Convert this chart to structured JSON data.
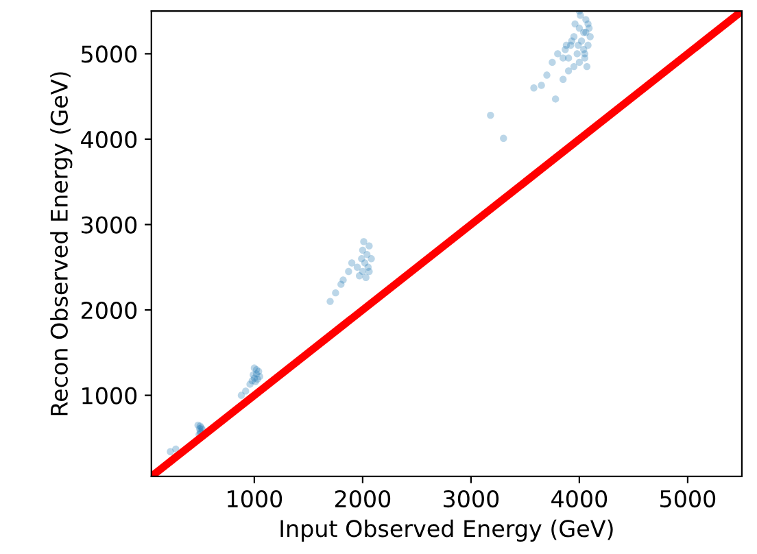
{
  "chart_data": {
    "type": "scatter",
    "xlabel": "Input Observed Energy (GeV)",
    "ylabel": "Recon Observed Energy (GeV)",
    "xlim": [
      50,
      5500
    ],
    "ylim": [
      50,
      5500
    ],
    "xticks": [
      1000,
      2000,
      3000,
      4000,
      5000
    ],
    "yticks": [
      1000,
      2000,
      3000,
      4000,
      5000
    ],
    "grid": false,
    "series": [
      {
        "marker": "circle",
        "color": "#1f77b4",
        "x": [
          225,
          275,
          490,
          500,
          510,
          520,
          505,
          495,
          480,
          500,
          880,
          920,
          960,
          980,
          1000,
          1020,
          1040,
          1050,
          1000,
          1010,
          1030,
          990,
          1020,
          1700,
          1750,
          1800,
          1820,
          1870,
          1900,
          1950,
          1970,
          2000,
          2020,
          2040,
          2060,
          2080,
          2000,
          2030,
          1990,
          2050,
          2010,
          2060,
          3180,
          3300,
          3580,
          3650,
          3780,
          3700,
          3750,
          3800,
          3850,
          3870,
          3900,
          3920,
          3950,
          3980,
          4000,
          4020,
          4040,
          4060,
          4080,
          4100,
          3900,
          3950,
          4000,
          4050,
          4080,
          3960,
          4010,
          4060,
          3930,
          3990,
          4040,
          4090,
          4000,
          4050,
          4070,
          3850,
          3880
        ],
        "values": [
          340,
          370,
          540,
          580,
          620,
          600,
          560,
          610,
          650,
          640,
          1000,
          1050,
          1130,
          1170,
          1200,
          1250,
          1280,
          1220,
          1320,
          1160,
          1190,
          1240,
          1300,
          2100,
          2200,
          2300,
          2350,
          2450,
          2550,
          2500,
          2400,
          2450,
          2550,
          2650,
          2750,
          2600,
          2700,
          2380,
          2600,
          2500,
          2800,
          2450,
          4280,
          4010,
          4600,
          4630,
          4470,
          4750,
          4900,
          5000,
          4950,
          5050,
          4800,
          5100,
          5200,
          5000,
          5300,
          5150,
          5050,
          5250,
          5350,
          5200,
          4950,
          4850,
          4900,
          5000,
          5100,
          5350,
          5450,
          5400,
          5150,
          5100,
          5250,
          5300,
          5500,
          4950,
          4850,
          4700,
          5100
        ]
      },
      {
        "type": "line",
        "color": "#ff0000",
        "x": [
          50,
          5500
        ],
        "values": [
          50,
          5500
        ]
      }
    ]
  }
}
